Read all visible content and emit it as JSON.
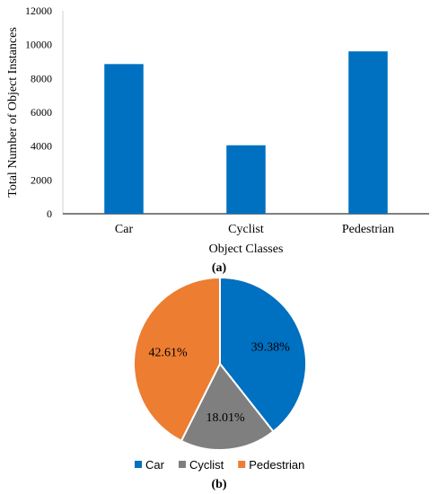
{
  "chart_data": [
    {
      "type": "bar",
      "panel_label": "(a)",
      "title": "",
      "xlabel": "Object Classes",
      "ylabel": "Total Number of Object Instances",
      "categories": [
        "Car",
        "Cyclist",
        "Pedestrian"
      ],
      "values": [
        8850,
        4050,
        9600
      ],
      "ylim": [
        0,
        12000
      ],
      "yticks": [
        0,
        2000,
        4000,
        6000,
        8000,
        10000,
        12000
      ],
      "grid": false,
      "color": "#0070C0"
    },
    {
      "type": "pie",
      "panel_label": "(b)",
      "title": "",
      "labels": [
        "Car",
        "Cyclist",
        "Pedestrian"
      ],
      "values": [
        39.38,
        18.01,
        42.61
      ],
      "value_labels": [
        "39.38%",
        "18.01%",
        "42.61%"
      ],
      "colors": [
        "#0070C0",
        "#7F7F7F",
        "#ED7D31"
      ],
      "legend_position": "bottom"
    }
  ]
}
